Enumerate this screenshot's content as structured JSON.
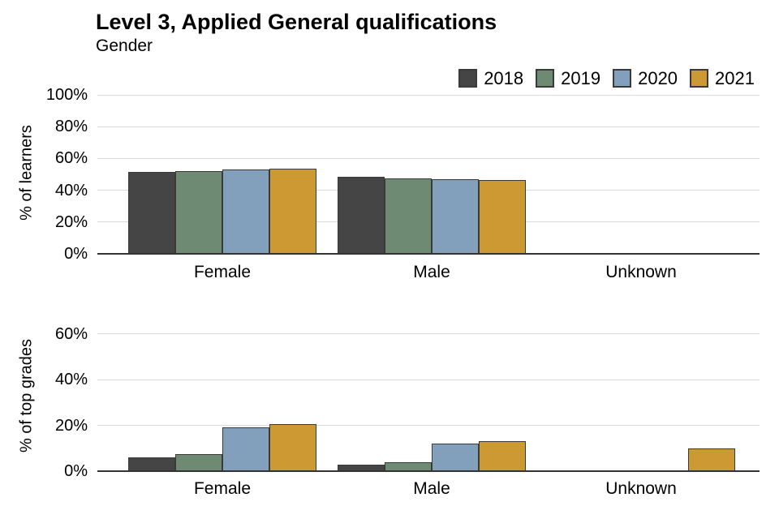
{
  "title": "Level 3, Applied General qualifications",
  "subtitle": "Gender",
  "legend": {
    "items": [
      {
        "label": "2018",
        "color": "#454545"
      },
      {
        "label": "2019",
        "color": "#6F8A72"
      },
      {
        "label": "2020",
        "color": "#82A0BC"
      },
      {
        "label": "2021",
        "color": "#CC9933"
      }
    ]
  },
  "colors": {
    "bar_border": "#3A3A3A",
    "gridline": "#D9D9D9",
    "axis_line": "#333333",
    "text": "#000000",
    "background": "#FFFFFF"
  },
  "chart_data": [
    {
      "type": "bar",
      "panel": "top",
      "ylabel": "% of learners",
      "categories": [
        "Female",
        "Male",
        "Unknown"
      ],
      "series": [
        {
          "name": "2018",
          "values": [
            51.5,
            48.5,
            0
          ]
        },
        {
          "name": "2019",
          "values": [
            52,
            47.5,
            0
          ]
        },
        {
          "name": "2020",
          "values": [
            53,
            47,
            0
          ]
        },
        {
          "name": "2021",
          "values": [
            53.5,
            46.5,
            0
          ]
        }
      ],
      "yticks": [
        0,
        20,
        40,
        60,
        80,
        100
      ],
      "yticklabels": [
        "0%",
        "20%",
        "40%",
        "60%",
        "80%",
        "100%"
      ],
      "ylim": [
        0,
        105
      ],
      "grid": true,
      "legend_position": "top-right"
    },
    {
      "type": "bar",
      "panel": "bottom",
      "ylabel": "% of top grades",
      "categories": [
        "Female",
        "Male",
        "Unknown"
      ],
      "series": [
        {
          "name": "2018",
          "values": [
            6,
            3,
            0
          ]
        },
        {
          "name": "2019",
          "values": [
            7.5,
            4,
            0
          ]
        },
        {
          "name": "2020",
          "values": [
            19,
            12,
            0
          ]
        },
        {
          "name": "2021",
          "values": [
            20.5,
            13,
            10
          ]
        }
      ],
      "yticks": [
        0,
        20,
        40,
        60
      ],
      "yticklabels": [
        "0%",
        "20%",
        "40%",
        "60%"
      ],
      "ylim": [
        0,
        65
      ],
      "grid": true,
      "legend_position": "none"
    }
  ]
}
